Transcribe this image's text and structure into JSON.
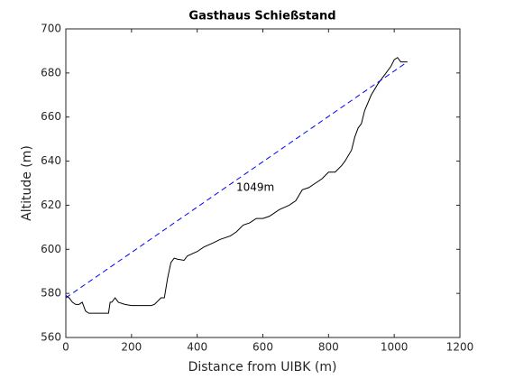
{
  "chart_data": {
    "type": "line",
    "title": "Gasthaus Schießstand",
    "xlabel": "Distance from UIBK (m)",
    "ylabel": "Altitude (m)",
    "xlim": [
      0,
      1200
    ],
    "ylim": [
      560,
      700
    ],
    "xticks": [
      0,
      200,
      400,
      600,
      800,
      1000,
      1200
    ],
    "yticks": [
      560,
      580,
      600,
      620,
      640,
      660,
      680,
      700
    ],
    "grid": false,
    "annotations": [
      {
        "text": "1049m",
        "x": 519,
        "y": 628
      }
    ],
    "series": [
      {
        "color": "#000000",
        "dash": "solid",
        "x": [
          0,
          10,
          20,
          30,
          40,
          50,
          60,
          70,
          100,
          130,
          135,
          140,
          150,
          160,
          180,
          200,
          230,
          260,
          270,
          290,
          300,
          310,
          320,
          330,
          340,
          360,
          370,
          400,
          420,
          450,
          470,
          500,
          520,
          540,
          560,
          580,
          600,
          620,
          650,
          680,
          700,
          720,
          740,
          760,
          780,
          800,
          820,
          840,
          850,
          870,
          880,
          890,
          900,
          910,
          930,
          950,
          970,
          990,
          1000,
          1010,
          1020,
          1030,
          1040
        ],
        "values": [
          579,
          578,
          576,
          575,
          575,
          576,
          572,
          571,
          571,
          571,
          576,
          576,
          578,
          576,
          575,
          574.5,
          574.5,
          574.5,
          575,
          578,
          578,
          587,
          594,
          596,
          595.5,
          595,
          597,
          599,
          601,
          603,
          604.5,
          606,
          608,
          611,
          612,
          614,
          614,
          615,
          618,
          620,
          622,
          627,
          628,
          630,
          632,
          635,
          635,
          638,
          640,
          645,
          651,
          655,
          657,
          663,
          670,
          675,
          679,
          683,
          686,
          687,
          685,
          685,
          685
        ]
      },
      {
        "color": "#0000ff",
        "dash": "dashed",
        "x": [
          0,
          1040
        ],
        "values": [
          578,
          685
        ]
      }
    ]
  }
}
